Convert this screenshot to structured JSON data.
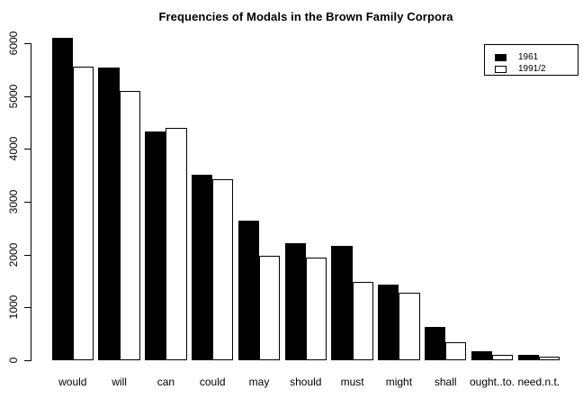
{
  "title": "Frequencies of Modals in the Brown Family Corpora",
  "colors": {
    "series_1961": "#000000",
    "series_1991": "#ffffff",
    "axis": "#000000",
    "background": "#ffffff"
  },
  "legend": {
    "position": "top-right",
    "items": [
      "1961",
      "1991/2"
    ]
  },
  "chart_data": {
    "type": "bar",
    "title": "Frequencies of Modals in the Brown Family Corpora",
    "xlabel": "",
    "ylabel": "",
    "grid": false,
    "legend_position": "top-right",
    "ylim": [
      0,
      6000
    ],
    "yticks": [
      0,
      1000,
      2000,
      3000,
      4000,
      5000,
      6000
    ],
    "categories": [
      "would",
      "will",
      "can",
      "could",
      "may",
      "should",
      "must",
      "might",
      "shall",
      "ought..to.",
      "need.n.t."
    ],
    "series": [
      {
        "name": "1961",
        "fill": "#000000",
        "values": [
          6092,
          5531,
          4335,
          3508,
          2647,
          2222,
          2169,
          1437,
          624,
          172,
          110
        ]
      },
      {
        "name": "1991/2",
        "fill": "#ffffff",
        "values": [
          5558,
          5102,
          4392,
          3429,
          1977,
          1935,
          1488,
          1285,
          335,
          107,
          76
        ]
      }
    ]
  }
}
